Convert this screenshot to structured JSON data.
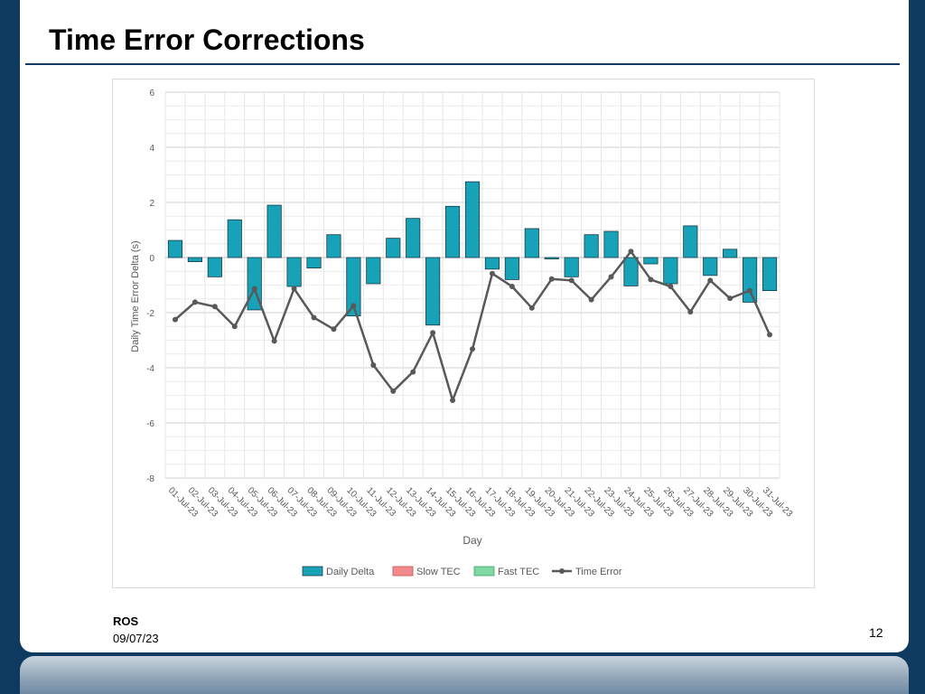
{
  "slide": {
    "title": "Time Error Corrections",
    "footer_org": "ROS",
    "footer_date": "09/07/23",
    "page_number": "12"
  },
  "chart_data": {
    "type": "bar",
    "title": "",
    "xlabel": "Day",
    "ylabel": "Daily Time Error Delta (s)",
    "ylim": [
      -8,
      6
    ],
    "yticks": [
      -8,
      -6,
      -4,
      -2,
      0,
      2,
      4,
      6
    ],
    "grid": true,
    "legend_position": "bottom",
    "categories": [
      "01-Jul-23",
      "02-Jul-23",
      "03-Jul-23",
      "04-Jul-23",
      "05-Jul-23",
      "06-Jul-23",
      "07-Jul-23",
      "08-Jul-23",
      "09-Jul-23",
      "10-Jul-23",
      "11-Jul-23",
      "12-Jul-23",
      "13-Jul-23",
      "14-Jul-23",
      "15-Jul-23",
      "16-Jul-23",
      "17-Jul-23",
      "18-Jul-23",
      "19-Jul-23",
      "20-Jul-23",
      "21-Jul-23",
      "22-Jul-23",
      "23-Jul-23",
      "24-Jul-23",
      "25-Jul-23",
      "26-Jul-23",
      "27-Jul-23",
      "28-Jul-23",
      "29-Jul-23",
      "30-Jul-23",
      "31-Jul-23"
    ],
    "series": [
      {
        "name": "Daily Delta",
        "type": "bar",
        "color": "#17a2b8",
        "values": [
          0.62,
          -0.15,
          -0.7,
          1.37,
          -1.9,
          1.9,
          -1.05,
          -0.38,
          0.83,
          -2.12,
          -0.95,
          0.7,
          1.42,
          -2.45,
          1.86,
          2.75,
          -0.42,
          -0.8,
          1.05,
          -0.05,
          -0.7,
          0.83,
          0.95,
          -1.03,
          -0.23,
          -0.95,
          1.15,
          -0.65,
          0.3,
          -1.62,
          -1.2
        ]
      },
      {
        "name": "Slow TEC",
        "type": "bar",
        "color": "#f28b8b",
        "values": [
          0,
          0,
          0,
          0,
          0,
          0,
          0,
          0,
          0,
          0,
          0,
          0,
          0,
          0,
          0,
          0,
          0,
          0,
          0,
          0,
          0,
          0,
          0,
          0,
          0,
          0,
          0,
          0,
          0,
          0,
          0
        ]
      },
      {
        "name": "Fast TEC",
        "type": "bar",
        "color": "#7fd8a4",
        "values": [
          0,
          0,
          0,
          0,
          0,
          0,
          0,
          0,
          0,
          0,
          0,
          0,
          0,
          0,
          0,
          0,
          0,
          0,
          0,
          0,
          0,
          0,
          0,
          0,
          0,
          0,
          0,
          0,
          0,
          0,
          0
        ]
      },
      {
        "name": "Time Error",
        "type": "line",
        "color": "#595959",
        "values": [
          -2.25,
          -1.62,
          -1.78,
          -2.5,
          -1.13,
          -3.03,
          -1.13,
          -2.18,
          -2.6,
          -1.75,
          -3.9,
          -4.85,
          -4.15,
          -2.73,
          -5.18,
          -3.32,
          -0.58,
          -1.05,
          -1.83,
          -0.78,
          -0.83,
          -1.53,
          -0.7,
          0.22,
          -0.8,
          -1.05,
          -1.97,
          -0.83,
          -1.48,
          -1.2,
          -2.8
        ]
      }
    ]
  }
}
